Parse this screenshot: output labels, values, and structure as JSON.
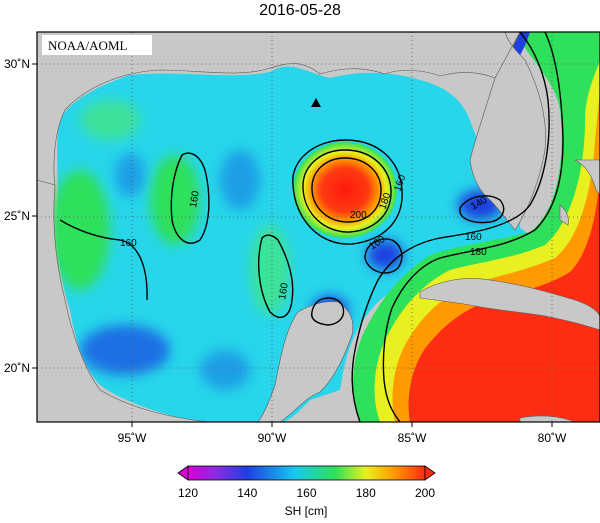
{
  "title": "2016-05-28",
  "credit": "NOAA/AOML",
  "x_axis": {
    "ticks": [
      {
        "value": -95,
        "label": "95˚W"
      },
      {
        "value": -90,
        "label": "90˚W"
      },
      {
        "value": -85,
        "label": "85˚W"
      },
      {
        "value": -80,
        "label": "80˚W"
      }
    ]
  },
  "y_axis": {
    "ticks": [
      {
        "value": 30,
        "label": "30˚N"
      },
      {
        "value": 25,
        "label": "25˚N"
      },
      {
        "value": 20,
        "label": "20˚N"
      }
    ]
  },
  "colorbar": {
    "label": "SH [cm]",
    "ticks": [
      {
        "value": 120,
        "label": "120"
      },
      {
        "value": 140,
        "label": "140"
      },
      {
        "value": 160,
        "label": "160"
      },
      {
        "value": 180,
        "label": "180"
      },
      {
        "value": 200,
        "label": "200"
      }
    ],
    "colors": {
      "magenta": "#d600d6",
      "violet": "#8a2be2",
      "blue": "#1f3fe0",
      "cyan": "#17c8ee",
      "green": "#2fe05a",
      "yellow": "#e8f020",
      "orange": "#ff9a00",
      "red": "#ff2a10"
    }
  },
  "contour_labels": [
    "160",
    "160",
    "160",
    "160",
    "200",
    "180",
    "160",
    "140",
    "160",
    "180"
  ],
  "colors": {
    "land": "#c8c8c8",
    "gulf_base": "#27d6ea",
    "caribbean_red": "#ff2d12"
  }
}
